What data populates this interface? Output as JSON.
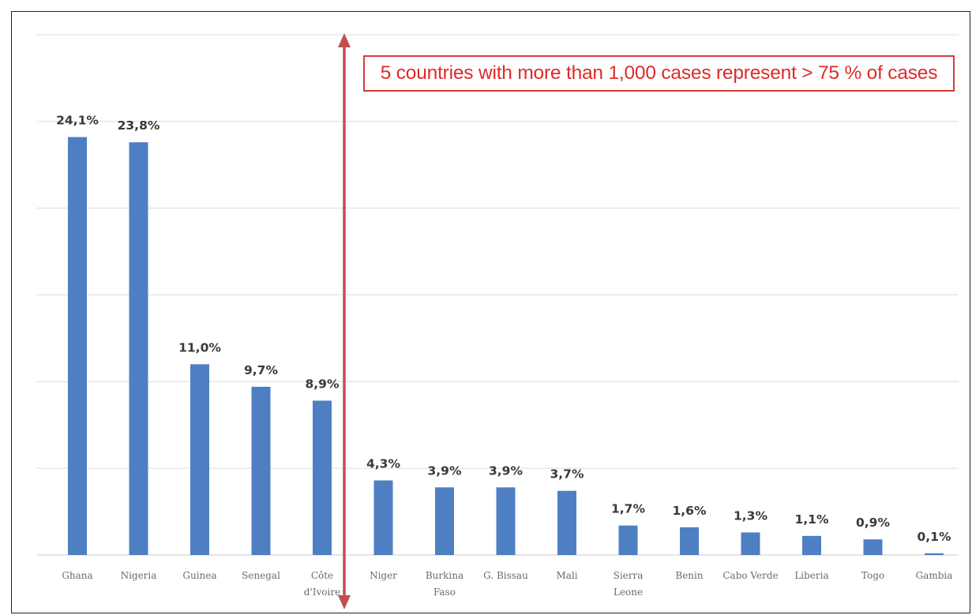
{
  "callout": {
    "text": "5 countries with more than 1,000 cases represent > 75 % of cases"
  },
  "colors": {
    "bar": "#4e7fc3",
    "grid": "#dcdcdc",
    "arrow": "#c0504d",
    "callout": "#e02a2a"
  },
  "chart_data": {
    "type": "bar",
    "title": "",
    "xlabel": "",
    "ylabel": "",
    "ylim": [
      0,
      30
    ],
    "grid": true,
    "categories": [
      [
        "Ghana"
      ],
      [
        "Nigeria"
      ],
      [
        "Guinea"
      ],
      [
        "Senegal"
      ],
      [
        "Côte",
        "d'Ivoire"
      ],
      [
        "Niger"
      ],
      [
        "Burkina",
        "Faso"
      ],
      [
        "G. Bissau"
      ],
      [
        "Mali"
      ],
      [
        "Sierra",
        "Leone"
      ],
      [
        "Benin"
      ],
      [
        "Cabo Verde"
      ],
      [
        "Liberia"
      ],
      [
        "Togo"
      ],
      [
        "Gambia"
      ]
    ],
    "values": [
      24.1,
      23.8,
      11.0,
      9.7,
      8.9,
      4.3,
      3.9,
      3.9,
      3.7,
      1.7,
      1.6,
      1.3,
      1.1,
      0.9,
      0.1
    ],
    "data_labels": [
      "24,1%",
      "23,8%",
      "11,0%",
      "9,7%",
      "8,9%",
      "4,3%",
      "3,9%",
      "3,9%",
      "3,7%",
      "1,7%",
      "1,6%",
      "1,3%",
      "1,1%",
      "0,9%",
      "0,1%"
    ],
    "annotations": [
      {
        "type": "double-arrow-vertical",
        "between_categories": [
          "Côte d'Ivoire",
          "Niger"
        ]
      }
    ]
  }
}
